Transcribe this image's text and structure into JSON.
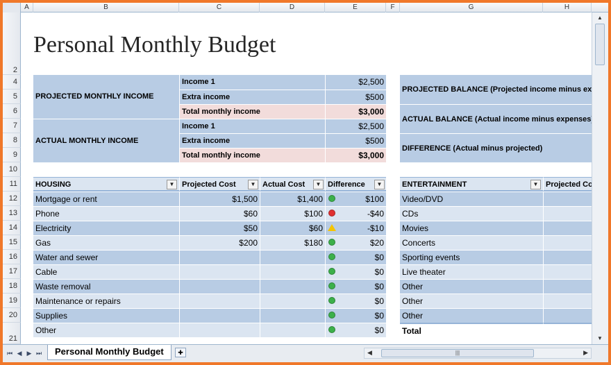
{
  "columns": [
    "A",
    "B",
    "C",
    "D",
    "E",
    "F",
    "G",
    "H"
  ],
  "rows": [
    "2",
    "4",
    "5",
    "6",
    "7",
    "8",
    "9",
    "10",
    "11",
    "12",
    "13",
    "14",
    "15",
    "16",
    "17",
    "18",
    "19",
    "20",
    "21"
  ],
  "title": "Personal Monthly Budget",
  "projected": {
    "label": "PROJECTED MONTHLY INCOME",
    "items": [
      {
        "label": "Income 1",
        "value": "$2,500"
      },
      {
        "label": "Extra income",
        "value": "$500"
      },
      {
        "label": "Total monthly income",
        "value": "$3,000"
      }
    ]
  },
  "actual": {
    "label": "ACTUAL MONTHLY INCOME",
    "items": [
      {
        "label": "Income 1",
        "value": "$2,500"
      },
      {
        "label": "Extra income",
        "value": "$500"
      },
      {
        "label": "Total monthly income",
        "value": "$3,000"
      }
    ]
  },
  "balance": {
    "projected": "PROJECTED BALANCE (Projected income minus exp",
    "actual": "ACTUAL BALANCE (Actual income minus expenses)",
    "difference": "DIFFERENCE (Actual minus projected)"
  },
  "housing": {
    "headers": [
      "HOUSING",
      "Projected Cost",
      "Actual Cost",
      "Difference"
    ],
    "dropdown_glyph": "▼",
    "rows": [
      {
        "name": "Mortgage or rent",
        "proj": "$1,500",
        "act": "$1,400",
        "diff": "$100",
        "status": "green"
      },
      {
        "name": "Phone",
        "proj": "$60",
        "act": "$100",
        "diff": "-$40",
        "status": "red"
      },
      {
        "name": "Electricity",
        "proj": "$50",
        "act": "$60",
        "diff": "-$10",
        "status": "yellow"
      },
      {
        "name": "Gas",
        "proj": "$200",
        "act": "$180",
        "diff": "$20",
        "status": "green"
      },
      {
        "name": "Water and sewer",
        "proj": "",
        "act": "",
        "diff": "$0",
        "status": "green"
      },
      {
        "name": "Cable",
        "proj": "",
        "act": "",
        "diff": "$0",
        "status": "green"
      },
      {
        "name": "Waste removal",
        "proj": "",
        "act": "",
        "diff": "$0",
        "status": "green"
      },
      {
        "name": "Maintenance or repairs",
        "proj": "",
        "act": "",
        "diff": "$0",
        "status": "green"
      },
      {
        "name": "Supplies",
        "proj": "",
        "act": "",
        "diff": "$0",
        "status": "green"
      },
      {
        "name": "Other",
        "proj": "",
        "act": "",
        "diff": "$0",
        "status": "green"
      }
    ]
  },
  "entertainment": {
    "headers": [
      "ENTERTAINMENT",
      "Projected Co"
    ],
    "rows": [
      "Video/DVD",
      "CDs",
      "Movies",
      "Concerts",
      "Sporting events",
      "Live theater",
      "Other",
      "Other",
      "Other",
      "Total"
    ]
  },
  "tabs": {
    "active": "Personal Monthly Budget",
    "nav": [
      "⏮",
      "◀",
      "▶",
      "⏭"
    ],
    "new_sheet_glyph": "✚"
  },
  "colors": {
    "green": "#3cb04a",
    "red": "#e03030",
    "yellow": "#f5c400",
    "frame": "#f0782a"
  }
}
